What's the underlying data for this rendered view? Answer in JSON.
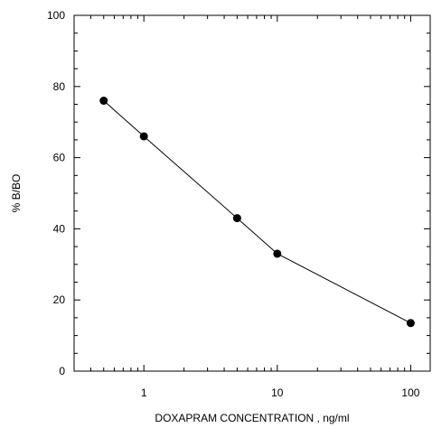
{
  "chart_data": {
    "type": "line",
    "title": "",
    "xlabel": "DOXAPRAM CONCENTRATION , ng/ml",
    "ylabel": "% B/BO",
    "x_scale": "log",
    "xlim": [
      0.3,
      140
    ],
    "ylim": [
      0,
      100
    ],
    "x_ticks": [
      1,
      10,
      100
    ],
    "x_tick_labels": [
      "1",
      "10",
      "100"
    ],
    "y_ticks": [
      0,
      20,
      40,
      60,
      80,
      100
    ],
    "y_tick_labels": [
      "0",
      "20",
      "40",
      "60",
      "80",
      "100"
    ],
    "grid": false,
    "legend": "none",
    "series": [
      {
        "x": [
          0.5,
          1,
          5,
          10,
          100
        ],
        "y": [
          76,
          66,
          43,
          33,
          13.5
        ],
        "color": "#000000",
        "marker": "circle"
      }
    ]
  }
}
